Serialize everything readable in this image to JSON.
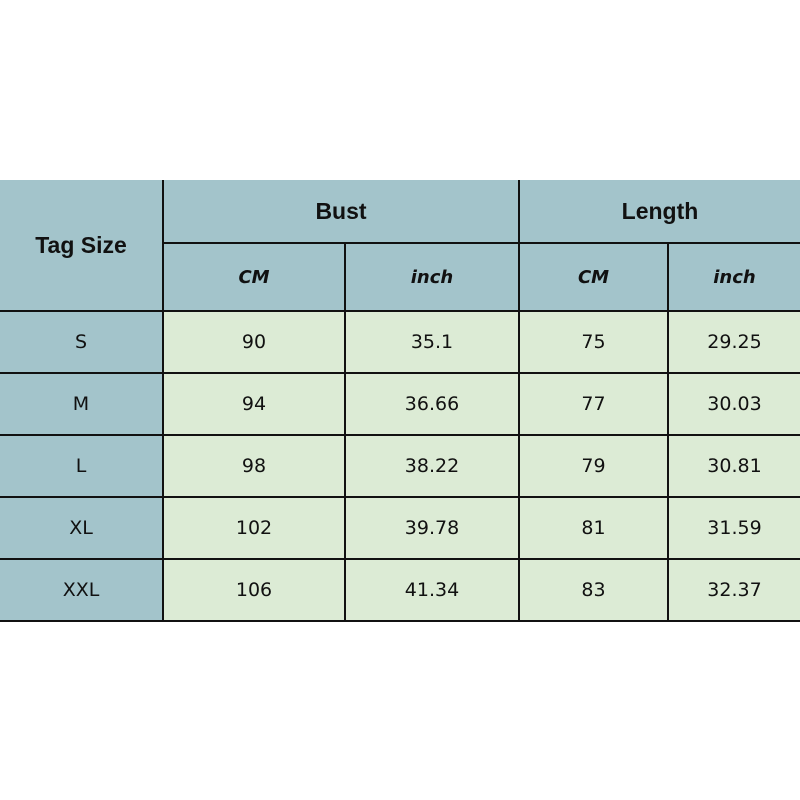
{
  "header": {
    "tag_size": "Tag Size",
    "bust": "Bust",
    "length": "Length",
    "cm": "CM",
    "inch": "inch"
  },
  "rows": [
    {
      "size": "S",
      "bust_cm": "90",
      "bust_inch": "35.1",
      "length_cm": "75",
      "length_inch": "29.25"
    },
    {
      "size": "M",
      "bust_cm": "94",
      "bust_inch": "36.66",
      "length_cm": "77",
      "length_inch": "30.03"
    },
    {
      "size": "L",
      "bust_cm": "98",
      "bust_inch": "38.22",
      "length_cm": "79",
      "length_inch": "30.81"
    },
    {
      "size": "XL",
      "bust_cm": "102",
      "bust_inch": "39.78",
      "length_cm": "81",
      "length_inch": "31.59"
    },
    {
      "size": "XXL",
      "bust_cm": "106",
      "bust_inch": "41.34",
      "length_cm": "83",
      "length_inch": "32.37"
    }
  ],
  "colors": {
    "header_bg": "#a3c4cb",
    "data_bg": "#dcebd5",
    "border": "#111111"
  }
}
